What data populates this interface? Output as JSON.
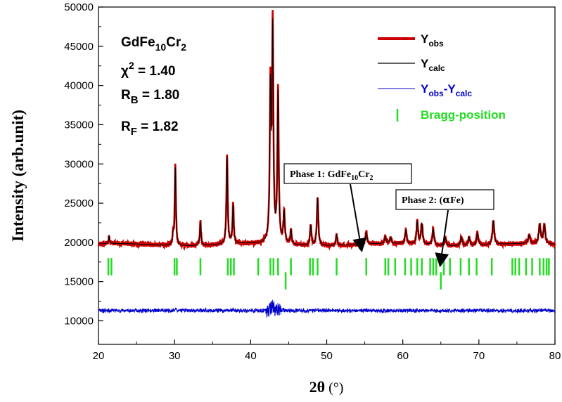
{
  "chart_data": {
    "type": "line",
    "xlabel_main": "2θ",
    "xlabel_unit": " (°)",
    "ylabel": "Intensity (arb.unit)",
    "xlim": [
      20,
      80
    ],
    "ylim": [
      7000,
      50000
    ],
    "x_ticks": [
      20,
      30,
      40,
      50,
      60,
      70,
      80
    ],
    "y_ticks": [
      10000,
      15000,
      20000,
      25000,
      30000,
      35000,
      40000,
      45000,
      50000
    ],
    "grid": false,
    "legend_position": "top-right",
    "info": {
      "compound_base": "GdFe",
      "compound_sub1": "10",
      "compound_mid": "Cr",
      "compound_sub2": "2",
      "chi_symbol": "χ",
      "chi_sup": "2",
      "chi_value": " =  1.40",
      "rb_label": "R",
      "rb_sub": "B",
      "rb_value": " = 1.80",
      "rf_label": "R",
      "rf_sub": "F",
      "rf_value": " = 1.82"
    },
    "legend": {
      "obs_main": "Y",
      "obs_sub": "obs",
      "calc_main": "Y",
      "calc_sub": "calc",
      "diff_main1": "Y",
      "diff_sub1": "obs",
      "diff_dash": "-Y",
      "diff_sub2": "calc",
      "bragg": "Bragg-position"
    },
    "colors": {
      "obs": "#cc0000",
      "calc": "#000000",
      "diff": "#0000cc",
      "bragg": "#22dd22"
    },
    "background": 19700,
    "diff_offset": 11300,
    "peaks": [
      {
        "x": 21.4,
        "y": 20700
      },
      {
        "x": 29.8,
        "y": 21000
      },
      {
        "x": 30.1,
        "y": 29900
      },
      {
        "x": 33.4,
        "y": 22800
      },
      {
        "x": 36.9,
        "y": 31200
      },
      {
        "x": 37.7,
        "y": 24700
      },
      {
        "x": 42.6,
        "y": 39000
      },
      {
        "x": 42.9,
        "y": 46900
      },
      {
        "x": 43.6,
        "y": 39200
      },
      {
        "x": 44.4,
        "y": 23800
      },
      {
        "x": 45.3,
        "y": 21500
      },
      {
        "x": 47.9,
        "y": 22300
      },
      {
        "x": 48.8,
        "y": 25900
      },
      {
        "x": 51.3,
        "y": 21100
      },
      {
        "x": 55.2,
        "y": 21300
      },
      {
        "x": 57.7,
        "y": 20600
      },
      {
        "x": 58.4,
        "y": 20500
      },
      {
        "x": 60.4,
        "y": 21500
      },
      {
        "x": 61.9,
        "y": 22600
      },
      {
        "x": 62.5,
        "y": 22400
      },
      {
        "x": 64.0,
        "y": 21800
      },
      {
        "x": 65.6,
        "y": 20700
      },
      {
        "x": 67.7,
        "y": 20900
      },
      {
        "x": 68.7,
        "y": 20800
      },
      {
        "x": 69.8,
        "y": 21300
      },
      {
        "x": 71.9,
        "y": 22800
      },
      {
        "x": 76.6,
        "y": 20800
      },
      {
        "x": 78.0,
        "y": 22200
      },
      {
        "x": 78.6,
        "y": 22100
      }
    ],
    "bragg_phase1": [
      21.3,
      21.7,
      30.0,
      30.3,
      33.4,
      37.0,
      37.4,
      37.8,
      41.0,
      42.6,
      43.0,
      43.6,
      45.3,
      47.8,
      48.2,
      48.8,
      51.3,
      55.2,
      57.7,
      58.1,
      59.0,
      60.3,
      61.1,
      61.9,
      62.5,
      63.6,
      64.0,
      64.4,
      65.4,
      66.2,
      67.6,
      68.7,
      69.7,
      71.7,
      74.4,
      74.8,
      75.3,
      76.2,
      77.0,
      78.0,
      78.5,
      78.9,
      79.2
    ],
    "bragg_phase2": [
      44.6,
      65.0
    ],
    "annotations": {
      "phase1_prefix": "Phase 1: GdFe",
      "phase1_sub1": "10",
      "phase1_mid": "Cr",
      "phase1_sub2": "2",
      "phase1_target": {
        "x": 54.6,
        "y": 18900
      },
      "phase2_prefix": "Phase 2: (",
      "phase2_alpha": "α",
      "phase2_suffix": "Fe)",
      "phase2_target": {
        "x": 64.9,
        "y": 17000
      }
    }
  }
}
